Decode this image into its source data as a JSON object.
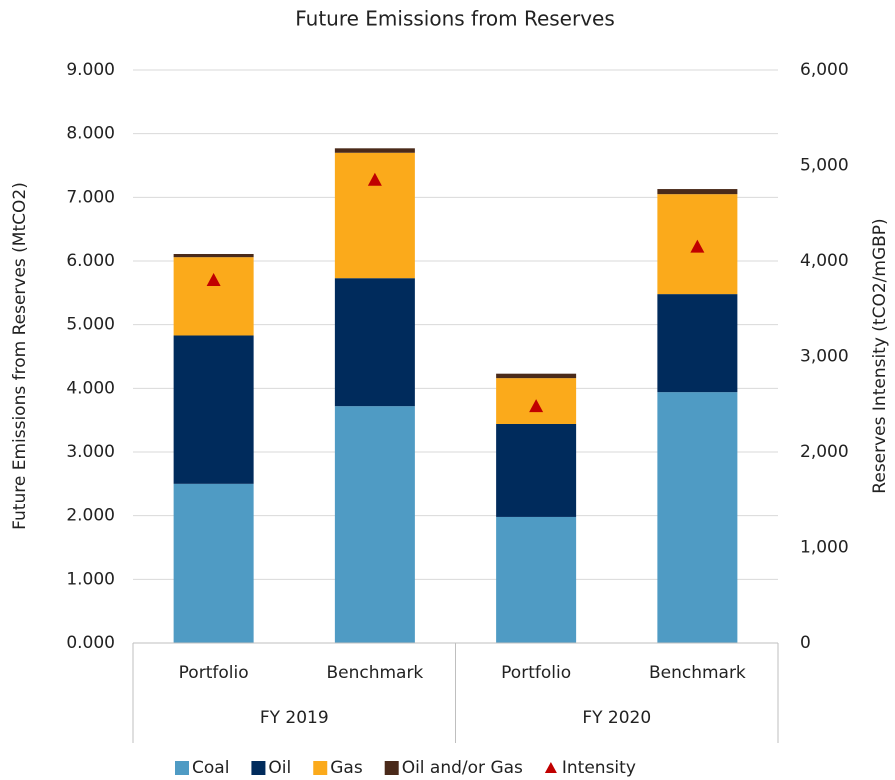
{
  "chart_data": {
    "type": "bar",
    "stacked": true,
    "title": "Future Emissions from Reserves",
    "ylabel": "Future Emissions from Reserves (MtCO2)",
    "y2label": "Reserves Intensity (tCO2/mGBP)",
    "categories": [
      "Portfolio",
      "Benchmark",
      "Portfolio",
      "Benchmark"
    ],
    "category_groups": [
      "FY 2019",
      "FY 2020"
    ],
    "series": [
      {
        "name": "Coal",
        "color": "#4f9bc4",
        "values": [
          2.5,
          3.72,
          1.98,
          3.94
        ]
      },
      {
        "name": "Oil",
        "color": "#002b5c",
        "values": [
          2.33,
          2.01,
          1.46,
          1.54
        ]
      },
      {
        "name": "Gas",
        "color": "#fbaa1b",
        "values": [
          1.23,
          1.97,
          0.72,
          1.57
        ]
      },
      {
        "name": "Oil and/or Gas",
        "color": "#4a2a1a",
        "values": [
          0.05,
          0.07,
          0.07,
          0.08
        ]
      },
      {
        "name": "Intensity",
        "color": "#c00000",
        "axis": "y2",
        "marker": "triangle",
        "values": [
          3790,
          4840,
          2470,
          4140
        ]
      }
    ],
    "ylim": [
      0,
      9
    ],
    "yticks": [
      {
        "value": 0,
        "label": "0.000"
      },
      {
        "value": 1,
        "label": "1.000"
      },
      {
        "value": 2,
        "label": "2.000"
      },
      {
        "value": 3,
        "label": "3.000"
      },
      {
        "value": 4,
        "label": "4.000"
      },
      {
        "value": 5,
        "label": "5.000"
      },
      {
        "value": 6,
        "label": "6.000"
      },
      {
        "value": 7,
        "label": "7.000"
      },
      {
        "value": 8,
        "label": "8.000"
      },
      {
        "value": 9,
        "label": "9.000"
      }
    ],
    "y2lim": [
      0,
      6000
    ],
    "y2ticks": [
      0,
      {
        "value": 1000,
        "label": "1,000"
      },
      {
        "value": 2000,
        "label": "2,000"
      },
      {
        "value": 3000,
        "label": "3,000"
      },
      {
        "value": 4000,
        "label": "4,000"
      },
      {
        "value": 5000,
        "label": "5,000"
      },
      {
        "value": 6000,
        "label": "6,000"
      }
    ],
    "grid": true,
    "legend": "bottom"
  }
}
